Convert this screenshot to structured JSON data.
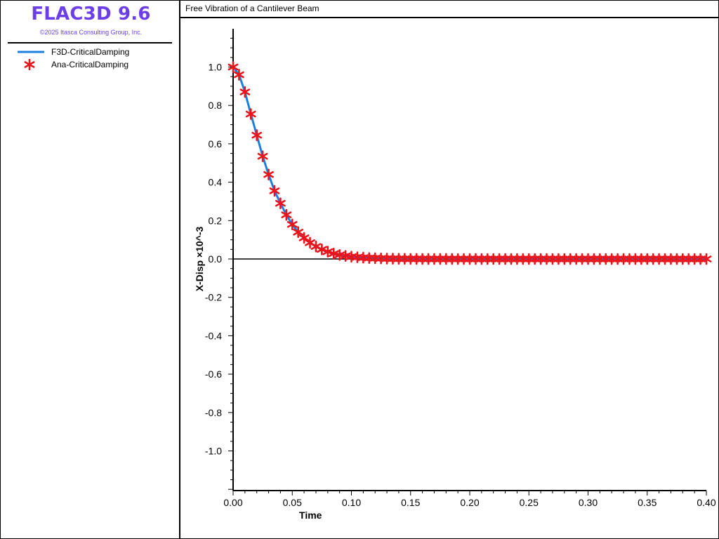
{
  "brand": {
    "title": "FLAC3D 9.6",
    "copyright": "©2025 Itasca Consulting Group, Inc."
  },
  "legend": [
    {
      "label": "F3D-CriticalDamping",
      "kind": "line",
      "color": "#1a7fe0",
      "icon": "line-swatch-icon"
    },
    {
      "label": "Ana-CriticalDamping",
      "kind": "marker",
      "color": "#e8161c",
      "icon": "asterisk-marker-icon"
    }
  ],
  "plot": {
    "title": "Free Vibration of a Cantilever Beam"
  },
  "chart_data": {
    "type": "line",
    "title": "Free Vibration of a Cantilever Beam",
    "xlabel": "Time",
    "ylabel": "X-Disp ×10^-3",
    "xlim": [
      0,
      0.4
    ],
    "ylim": [
      -1.2,
      1.2
    ],
    "x_ticks": [
      "0.00",
      "0.05",
      "0.10",
      "0.15",
      "0.20",
      "0.25",
      "0.30",
      "0.35",
      "0.40"
    ],
    "y_ticks": [
      "1.0",
      "0.8",
      "0.6",
      "0.4",
      "0.2",
      "0.0",
      "-0.2",
      "-0.4",
      "-0.6",
      "-0.8",
      "-1.0"
    ],
    "y_tick_values": [
      1.0,
      0.8,
      0.6,
      0.4,
      0.2,
      0.0,
      -0.2,
      -0.4,
      -0.6,
      -0.8,
      -1.0
    ],
    "x_tick_values": [
      0.0,
      0.05,
      0.1,
      0.15,
      0.2,
      0.25,
      0.3,
      0.35,
      0.4
    ],
    "grid": false,
    "zero_line": true,
    "legend_placement": "left panel",
    "series": [
      {
        "name": "F3D-CriticalDamping",
        "style": "line",
        "color": "#1a7fe0",
        "x": [
          0.0,
          0.005,
          0.01,
          0.015,
          0.02,
          0.025,
          0.03,
          0.035,
          0.04,
          0.045,
          0.05,
          0.055,
          0.06,
          0.065,
          0.07,
          0.075,
          0.08,
          0.085,
          0.09,
          0.095,
          0.1,
          0.11,
          0.12,
          0.13,
          0.14,
          0.15,
          0.2,
          0.25,
          0.3,
          0.35,
          0.4
        ],
        "y": [
          1.0,
          0.96,
          0.87,
          0.755,
          0.645,
          0.535,
          0.44,
          0.355,
          0.29,
          0.23,
          0.18,
          0.14,
          0.11,
          0.085,
          0.065,
          0.05,
          0.038,
          0.028,
          0.021,
          0.016,
          0.012,
          0.007,
          0.004,
          0.002,
          0.001,
          0.0,
          0.0,
          0.0,
          0.0,
          0.0,
          0.0
        ]
      },
      {
        "name": "Ana-CriticalDamping",
        "style": "marker",
        "color": "#e8161c",
        "x": [
          0.0,
          0.005,
          0.01,
          0.015,
          0.02,
          0.025,
          0.03,
          0.035,
          0.04,
          0.045,
          0.05,
          0.055,
          0.06,
          0.065,
          0.07,
          0.075,
          0.08,
          0.085,
          0.09,
          0.095,
          0.1,
          0.105,
          0.11,
          0.115,
          0.12,
          0.125,
          0.13,
          0.135,
          0.14,
          0.145,
          0.15,
          0.155,
          0.16,
          0.165,
          0.17,
          0.175,
          0.18,
          0.185,
          0.19,
          0.195,
          0.2,
          0.205,
          0.21,
          0.215,
          0.22,
          0.225,
          0.23,
          0.235,
          0.24,
          0.245,
          0.25,
          0.255,
          0.26,
          0.265,
          0.27,
          0.275,
          0.28,
          0.285,
          0.29,
          0.295,
          0.3,
          0.305,
          0.31,
          0.315,
          0.32,
          0.325,
          0.33,
          0.335,
          0.34,
          0.345,
          0.35,
          0.355,
          0.36,
          0.365,
          0.37,
          0.375,
          0.38,
          0.385,
          0.39,
          0.395,
          0.4
        ],
        "y": [
          1.0,
          0.96,
          0.87,
          0.755,
          0.645,
          0.535,
          0.44,
          0.355,
          0.29,
          0.23,
          0.18,
          0.14,
          0.11,
          0.085,
          0.065,
          0.05,
          0.038,
          0.028,
          0.021,
          0.016,
          0.012,
          0.009,
          0.007,
          0.005,
          0.004,
          0.003,
          0.002,
          0.0015,
          0.001,
          0.0008,
          0.0005,
          0.0004,
          0.0003,
          0.0002,
          0.0002,
          0.0001,
          0.0001,
          0.0001,
          0.0,
          0.0,
          0.0,
          0.0,
          0.0,
          0.0,
          0.0,
          0.0,
          0.0,
          0.0,
          0.0,
          0.0,
          0.0,
          0.0,
          0.0,
          0.0,
          0.0,
          0.0,
          0.0,
          0.0,
          0.0,
          0.0,
          0.0,
          0.0,
          0.0,
          0.0,
          0.0,
          0.0,
          0.0,
          0.0,
          0.0,
          0.0,
          0.0,
          0.0,
          0.0,
          0.0,
          0.0,
          0.0,
          0.0,
          0.0,
          0.0,
          0.0,
          0.0
        ]
      }
    ]
  }
}
